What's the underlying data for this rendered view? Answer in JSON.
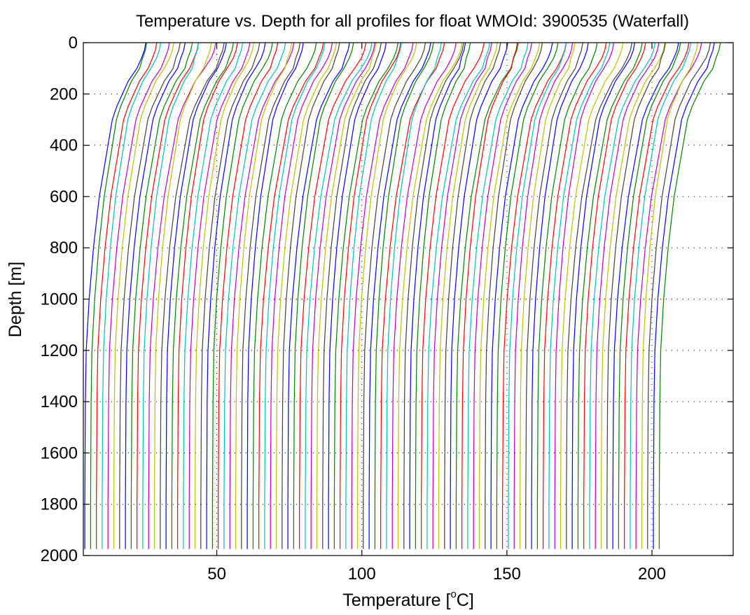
{
  "chart_data": {
    "type": "line",
    "title": "Temperature vs. Depth for all profiles for float WMOId: 3900535 (Waterfall)",
    "xlabel_prefix": "Temperature [",
    "xlabel_sup": "o",
    "xlabel_suffix": "C]",
    "ylabel": "Depth [m]",
    "xlim": [
      4,
      228
    ],
    "ylim": [
      0,
      2000
    ],
    "y_reversed": true,
    "x_ticks": [
      50,
      100,
      150,
      200
    ],
    "y_ticks": [
      0,
      200,
      400,
      600,
      800,
      1000,
      1200,
      1400,
      1600,
      1800,
      2000
    ],
    "grid": "dotted",
    "waterfall": {
      "profile_count": 100,
      "first_profile_surface_temp": 25.5,
      "offset_per_profile": 2,
      "color_cycle": [
        "#0000ff",
        "#008000",
        "#ff0000",
        "#00bfbf",
        "#bf00bf",
        "#bfbf00",
        "#404040"
      ],
      "typical_profile": {
        "depth": [
          0,
          30,
          60,
          100,
          150,
          200,
          250,
          300,
          400,
          500,
          600,
          700,
          800,
          1000,
          1200,
          1400,
          1600,
          1800,
          1975
        ],
        "temp_offset_from_deep": [
          21,
          20.5,
          19.5,
          18,
          15,
          13,
          11,
          9.5,
          8,
          6.5,
          5,
          4,
          3,
          1.5,
          0.5,
          0.2,
          0.1,
          0,
          0
        ]
      }
    }
  }
}
